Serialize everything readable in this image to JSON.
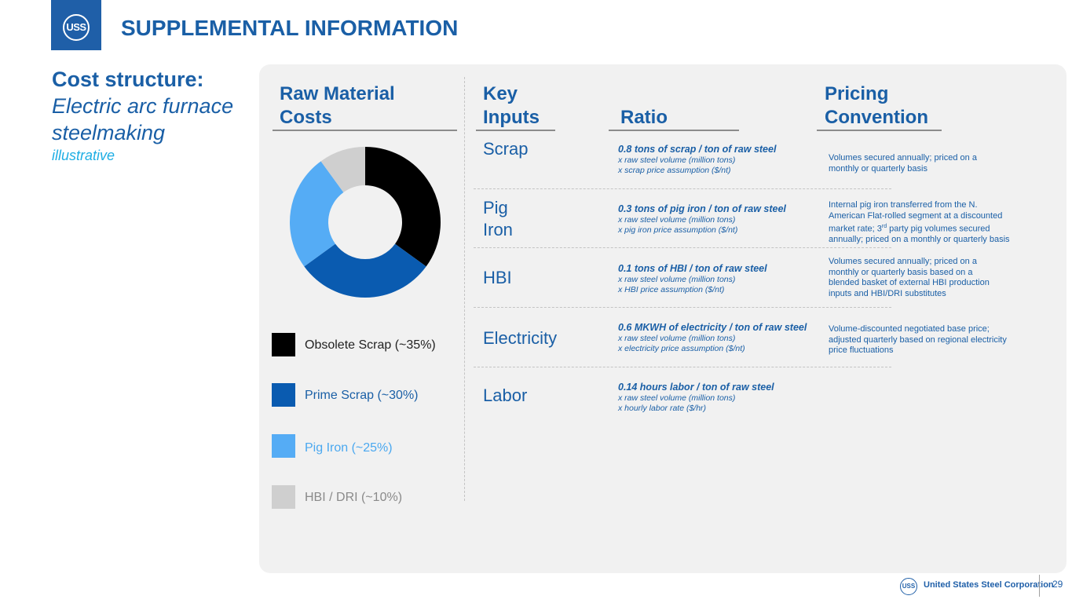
{
  "header": {
    "logo_text": "USS",
    "title": "SUPPLEMENTAL INFORMATION"
  },
  "left": {
    "title": "Cost structure:",
    "subtitle": "Electric arc furnace steelmaking",
    "note": "illustrative"
  },
  "columns": {
    "raw_material": "Raw Material Costs",
    "key_inputs": "Key Inputs",
    "ratio": "Ratio",
    "pricing": "Pricing Convention"
  },
  "chart_data": {
    "type": "pie",
    "donut": true,
    "title": "Raw Material Costs",
    "categories": [
      "Obsolete Scrap",
      "Prime Scrap",
      "Pig Iron",
      "HBI / DRI"
    ],
    "values": [
      35,
      30,
      25,
      10
    ],
    "legend": [
      "Obsolete Scrap (~35%)",
      "Prime Scrap (~30%)",
      "Pig Iron (~25%)",
      "HBI / DRI (~10%)"
    ],
    "colors": [
      "#000000",
      "#0a5bb0",
      "#55acf5",
      "#cfcfcf"
    ],
    "legend_colors": [
      "#222222",
      "#1a5fa6",
      "#4aa8f0",
      "#8a8a8a"
    ],
    "legend_placement": "below"
  },
  "rows": [
    {
      "label": "Scrap",
      "ratio_main": "0.8 tons of scrap / ton of raw steel",
      "ratio_sub1": "x raw steel volume (million tons)",
      "ratio_sub2": "x scrap price assumption ($/nt)",
      "pricing_lines": [
        "Volumes secured annually; priced on a",
        "monthly or quarterly basis"
      ]
    },
    {
      "label": "Pig Iron",
      "ratio_main": "0.3 tons of pig iron / ton of raw steel",
      "ratio_sub1": "x raw steel volume (million tons)",
      "ratio_sub2": "x pig iron price assumption ($/nt)",
      "pricing_lines": [
        "Internal pig iron transferred from the N.",
        "American Flat-rolled segment at a discounted",
        "market rate; 3rd party pig volumes secured",
        "annually; priced on a monthly or quarterly basis"
      ]
    },
    {
      "label": "HBI",
      "ratio_main": "0.1 tons of HBI / ton of raw steel",
      "ratio_sub1": "x raw steel volume (million tons)",
      "ratio_sub2": "x HBI price assumption ($/nt)",
      "pricing_lines": [
        "Volumes secured annually; priced on a",
        "monthly or quarterly basis based on a",
        "blended basket of external HBI production",
        "inputs and HBI/DRI substitutes"
      ]
    },
    {
      "label": "Electricity",
      "ratio_main": "0.6 MKWH of electricity / ton of raw steel",
      "ratio_sub1": "x raw steel volume (million tons)",
      "ratio_sub2": "x electricity price assumption ($/nt)",
      "pricing_lines": [
        "Volume-discounted negotiated base price;",
        "adjusted quarterly based on regional electricity",
        "price fluctuations"
      ]
    },
    {
      "label": "Labor",
      "ratio_main": "0.14 hours labor / ton of raw steel",
      "ratio_sub1": "x raw steel volume (million tons)",
      "ratio_sub2": "x hourly labor rate ($/hr)",
      "pricing_lines": []
    }
  ],
  "footer": {
    "logo_text": "USS",
    "company": "United States Steel Corporation",
    "page_number": "29"
  }
}
